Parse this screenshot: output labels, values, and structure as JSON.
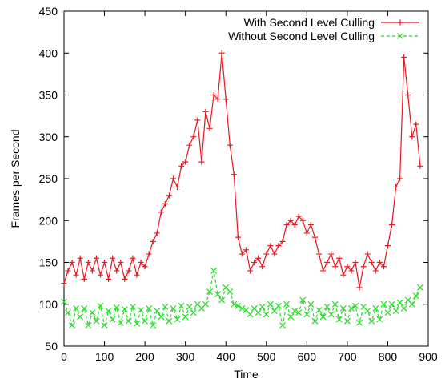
{
  "chart_data": {
    "type": "line",
    "title": "",
    "xlabel": "Time",
    "ylabel": "Frames per Second",
    "xlim": [
      0,
      900
    ],
    "ylim": [
      50,
      450
    ],
    "xticks": [
      "0",
      "100",
      "200",
      "300",
      "400",
      "500",
      "600",
      "700",
      "800",
      "900"
    ],
    "yticks": [
      "50",
      "100",
      "150",
      "200",
      "250",
      "300",
      "350",
      "400",
      "450"
    ],
    "grid": false,
    "legend_position": "top-right",
    "series": [
      {
        "name": "With Second Level Culling",
        "color": "#e8171f",
        "marker": "plus",
        "line_style": "solid",
        "x": [
          0,
          10,
          20,
          30,
          40,
          50,
          60,
          70,
          80,
          90,
          100,
          110,
          120,
          130,
          140,
          150,
          160,
          170,
          180,
          190,
          200,
          210,
          220,
          230,
          240,
          250,
          260,
          270,
          280,
          290,
          300,
          310,
          320,
          330,
          340,
          350,
          360,
          370,
          380,
          390,
          400,
          410,
          420,
          430,
          440,
          450,
          460,
          470,
          480,
          490,
          500,
          510,
          520,
          530,
          540,
          550,
          560,
          570,
          580,
          590,
          600,
          610,
          620,
          630,
          640,
          650,
          660,
          670,
          680,
          690,
          700,
          710,
          720,
          730,
          740,
          750,
          760,
          770,
          780,
          790,
          800,
          810,
          820,
          830,
          840,
          850,
          860,
          870,
          880
        ],
        "y": [
          125,
          140,
          150,
          135,
          155,
          130,
          150,
          140,
          155,
          135,
          150,
          130,
          155,
          140,
          150,
          130,
          140,
          155,
          135,
          150,
          145,
          160,
          175,
          185,
          210,
          220,
          230,
          250,
          240,
          265,
          270,
          290,
          300,
          320,
          270,
          330,
          310,
          350,
          345,
          400,
          345,
          290,
          255,
          180,
          160,
          165,
          140,
          150,
          155,
          145,
          160,
          170,
          160,
          170,
          175,
          195,
          200,
          195,
          205,
          200,
          185,
          195,
          180,
          160,
          140,
          150,
          160,
          145,
          155,
          135,
          145,
          140,
          150,
          120,
          145,
          160,
          150,
          140,
          150,
          145,
          170,
          195,
          240,
          250,
          395,
          350,
          300,
          315,
          265
        ]
      },
      {
        "name": "Without Second Level Culling",
        "color": "#22dd22",
        "marker": "x",
        "line_style": "dashed",
        "x": [
          0,
          10,
          20,
          30,
          40,
          50,
          60,
          70,
          80,
          90,
          100,
          110,
          120,
          130,
          140,
          150,
          160,
          170,
          180,
          190,
          200,
          210,
          220,
          230,
          240,
          250,
          260,
          270,
          280,
          290,
          300,
          310,
          320,
          330,
          340,
          350,
          360,
          370,
          380,
          390,
          400,
          410,
          420,
          430,
          440,
          450,
          460,
          470,
          480,
          490,
          500,
          510,
          520,
          530,
          540,
          550,
          560,
          570,
          580,
          590,
          600,
          610,
          620,
          630,
          640,
          650,
          660,
          670,
          680,
          690,
          700,
          710,
          720,
          730,
          740,
          750,
          760,
          770,
          780,
          790,
          800,
          810,
          820,
          830,
          840,
          850,
          860,
          870,
          880
        ],
        "y": [
          103,
          90,
          75,
          95,
          85,
          95,
          75,
          90,
          80,
          98,
          75,
          92,
          82,
          96,
          78,
          94,
          80,
          97,
          77,
          93,
          80,
          95,
          75,
          92,
          85,
          97,
          80,
          95,
          82,
          98,
          85,
          97,
          90,
          100,
          95,
          100,
          115,
          140,
          112,
          105,
          120,
          115,
          100,
          98,
          95,
          93,
          88,
          95,
          90,
          97,
          88,
          100,
          92,
          98,
          75,
          100,
          85,
          92,
          90,
          105,
          88,
          100,
          80,
          93,
          85,
          97,
          88,
          100,
          82,
          95,
          80,
          95,
          98,
          78,
          97,
          92,
          80,
          95,
          82,
          100,
          90,
          100,
          92,
          102,
          95,
          105,
          100,
          110,
          120
        ]
      }
    ]
  }
}
